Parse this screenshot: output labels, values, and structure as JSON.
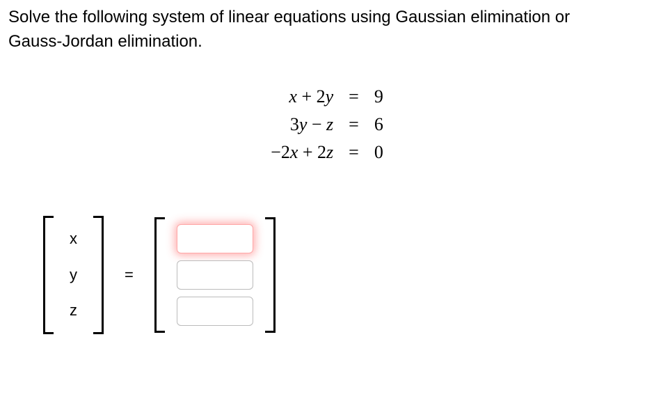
{
  "prompt": {
    "line1": "Solve the following system of linear equations using Gaussian elimination or",
    "line2": "Gauss-Jordan elimination."
  },
  "equations": {
    "rows": [
      {
        "left_html": "x + 2y",
        "eq": "=",
        "right": "9"
      },
      {
        "left_html": "3y − z",
        "eq": "=",
        "right": "6"
      },
      {
        "left_html": "−2x + 2z",
        "eq": "=",
        "right": "0"
      }
    ],
    "font_family": "Times New Roman",
    "font_size_pt": 20
  },
  "variables": [
    "x",
    "y",
    "z"
  ],
  "equals_symbol": "=",
  "inputs": {
    "count": 3,
    "highlight_index": 0,
    "values": [
      "",
      "",
      ""
    ],
    "placeholder": ""
  },
  "colors": {
    "text": "#000000",
    "background": "#ffffff",
    "input_border": "#bbbbbb",
    "glow": "rgba(255,80,80,0.45)"
  }
}
